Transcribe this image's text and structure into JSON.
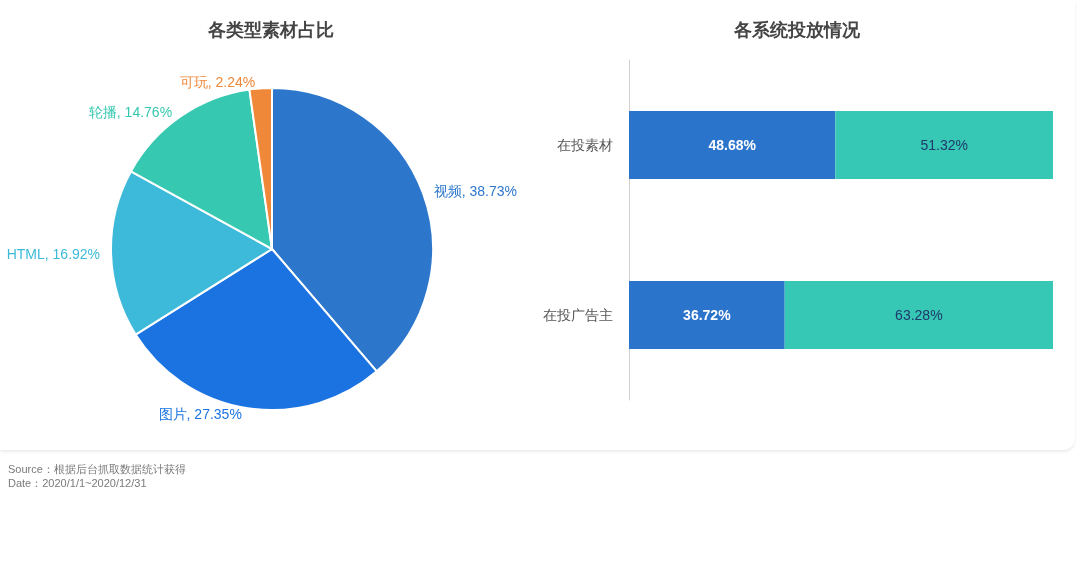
{
  "chart_data": [
    {
      "type": "pie",
      "title": "各类型素材占比",
      "categories": [
        "视频",
        "图片",
        "HTML",
        "轮播",
        "可玩"
      ],
      "values": [
        38.73,
        27.35,
        16.92,
        14.76,
        2.24
      ],
      "colors": [
        "#2c77cc",
        "#1a73e0",
        "#3dbad9",
        "#36c8b0",
        "#f0883a"
      ],
      "value_labels": [
        "38.73%",
        "27.35%",
        "16.92%",
        "14.76%",
        "2.24%"
      ],
      "annotations": [
        "Source：根据后台抓取数据统计获得",
        "Date：2020/1/1~2020/12/31"
      ]
    },
    {
      "type": "bar",
      "title": "各系统投放情况",
      "orientation": "horizontal",
      "stacked": true,
      "categories": [
        "在投素材",
        "在投广告主"
      ],
      "series": [
        {
          "color": "#2b74cc",
          "values": [
            48.68,
            36.72
          ],
          "value_labels": [
            "48.68%",
            "36.72%"
          ]
        },
        {
          "color": "#36c8b4",
          "values": [
            51.32,
            63.28
          ],
          "value_labels": [
            "51.32%",
            "63.28%"
          ]
        }
      ]
    }
  ]
}
